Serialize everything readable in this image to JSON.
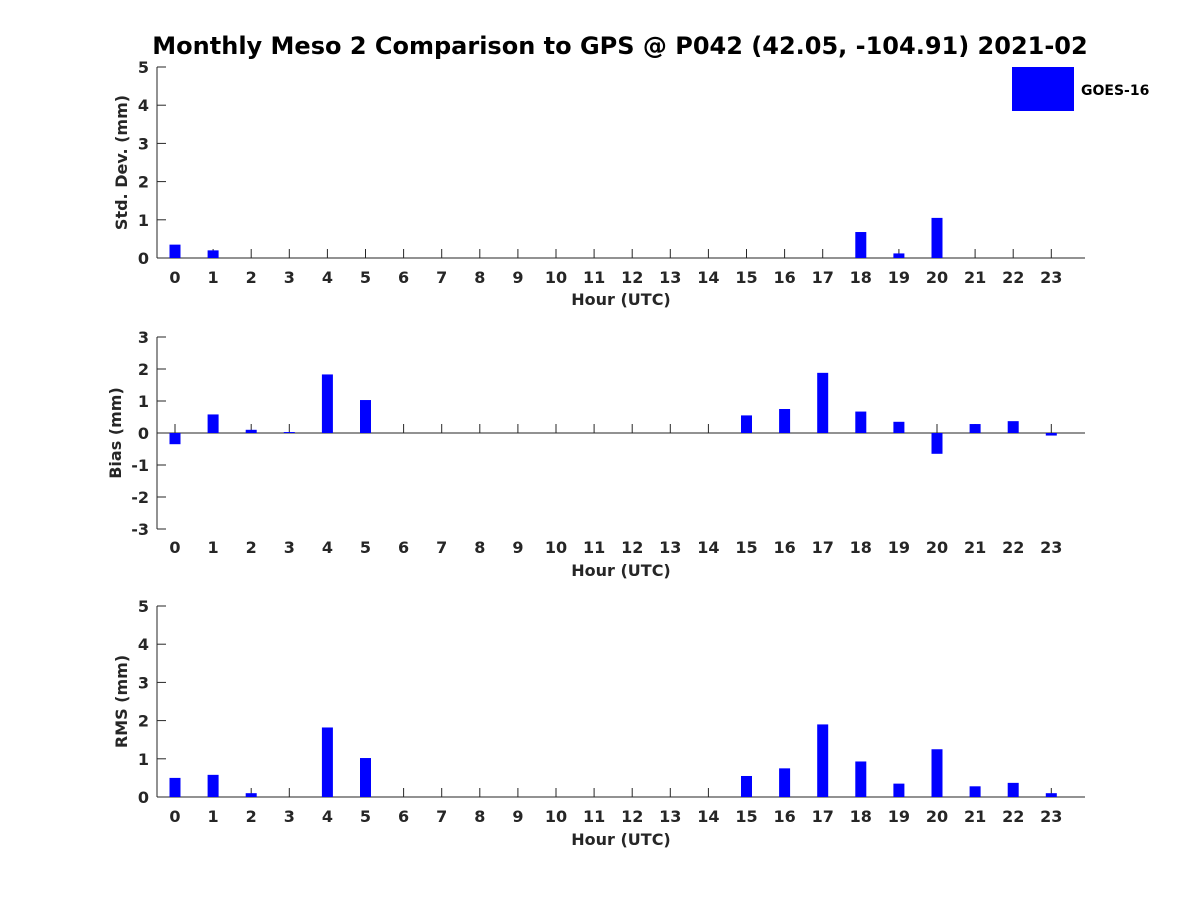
{
  "title": "Monthly Meso 2 Comparison to GPS @ P042 (42.05, -104.91) 2021-02",
  "legend": {
    "label": "GOES-16",
    "color": "#0000ff"
  },
  "chart_data": [
    {
      "type": "bar",
      "panel": "std-dev",
      "categories": [
        "0",
        "1",
        "2",
        "3",
        "4",
        "5",
        "6",
        "7",
        "8",
        "9",
        "10",
        "11",
        "12",
        "13",
        "14",
        "15",
        "16",
        "17",
        "18",
        "19",
        "20",
        "21",
        "22",
        "23"
      ],
      "series": [
        {
          "name": "GOES-16",
          "values": [
            0.35,
            0.2,
            0,
            0,
            0,
            0,
            0,
            0,
            0,
            0,
            0,
            0,
            0,
            0,
            0,
            0,
            0,
            0,
            0.68,
            0.12,
            1.05,
            0,
            0,
            0
          ]
        }
      ],
      "xlabel": "Hour (UTC)",
      "ylabel": "Std. Dev. (mm)",
      "ylim": [
        0,
        5
      ],
      "yticks": [
        "0",
        "1",
        "2",
        "3",
        "4",
        "5"
      ]
    },
    {
      "type": "bar",
      "panel": "bias",
      "categories": [
        "0",
        "1",
        "2",
        "3",
        "4",
        "5",
        "6",
        "7",
        "8",
        "9",
        "10",
        "11",
        "12",
        "13",
        "14",
        "15",
        "16",
        "17",
        "18",
        "19",
        "20",
        "21",
        "22",
        "23"
      ],
      "series": [
        {
          "name": "GOES-16",
          "values": [
            -0.35,
            0.58,
            0.1,
            0.03,
            1.83,
            1.03,
            0,
            0,
            0,
            0,
            0,
            0,
            0,
            0,
            0,
            0.55,
            0.75,
            1.88,
            0.67,
            0.35,
            -0.65,
            0.28,
            0.37,
            -0.08
          ]
        }
      ],
      "xlabel": "Hour (UTC)",
      "ylabel": "Bias (mm)",
      "ylim": [
        -3,
        3
      ],
      "yticks": [
        "-3",
        "-2",
        "-1",
        "0",
        "1",
        "2",
        "3"
      ]
    },
    {
      "type": "bar",
      "panel": "rms",
      "categories": [
        "0",
        "1",
        "2",
        "3",
        "4",
        "5",
        "6",
        "7",
        "8",
        "9",
        "10",
        "11",
        "12",
        "13",
        "14",
        "15",
        "16",
        "17",
        "18",
        "19",
        "20",
        "21",
        "22",
        "23"
      ],
      "series": [
        {
          "name": "GOES-16",
          "values": [
            0.5,
            0.58,
            0.1,
            0,
            1.82,
            1.02,
            0,
            0,
            0,
            0,
            0,
            0,
            0,
            0,
            0,
            0.55,
            0.75,
            1.9,
            0.93,
            0.35,
            1.25,
            0.28,
            0.37,
            0.1
          ]
        }
      ],
      "xlabel": "Hour (UTC)",
      "ylabel": "RMS (mm)",
      "ylim": [
        0,
        5
      ],
      "yticks": [
        "0",
        "1",
        "2",
        "3",
        "4",
        "5"
      ]
    }
  ]
}
